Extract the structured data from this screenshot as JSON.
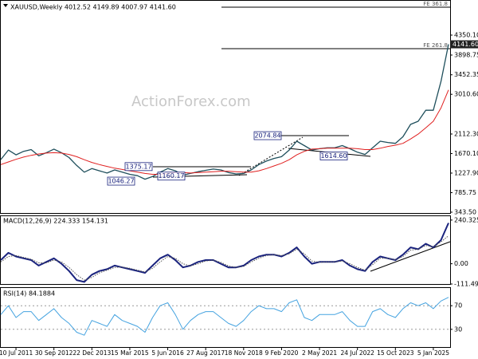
{
  "chart_data": [
    {
      "type": "line",
      "title": "XAUUSD,Weekly  4012.52 4149.89 4007.97 4141.60",
      "watermark": "ActionForex.com",
      "ylim": [
        307,
        5108
      ],
      "yticks": [
        {
          "value": 4350.1,
          "label": "4350.10"
        },
        {
          "value": 3898.75,
          "label": "3898.75"
        },
        {
          "value": 3452.35,
          "label": "3452.35"
        },
        {
          "value": 3010.6,
          "label": "3010.60"
        },
        {
          "value": 2112.3,
          "label": "2112.30"
        },
        {
          "value": 1670.1,
          "label": "1670.10"
        },
        {
          "value": 1227.9,
          "label": "1227.90"
        },
        {
          "value": 785.75,
          "label": "785.75"
        },
        {
          "value": 343.5,
          "label": "343.50"
        }
      ],
      "last_price": {
        "value": 4141.6,
        "label": "4141.60"
      },
      "levels": [
        {
          "value": 4982,
          "label": "FE 361.8"
        },
        {
          "value": 4043,
          "label": "FE 261.8"
        }
      ],
      "annotations": [
        {
          "value": 2074.84,
          "label": "2074.84"
        },
        {
          "value": 1375.17,
          "label": "1375.17"
        },
        {
          "value": 1046.27,
          "label": "1046.27"
        },
        {
          "value": 1160.17,
          "label": "1160.17"
        },
        {
          "value": 1614.6,
          "label": "1614.60"
        }
      ],
      "series": [
        {
          "color": "#1f4f5c",
          "width": 1.3,
          "values": [
            1534,
            1750,
            1640,
            1720,
            1760,
            1620,
            1690,
            1770,
            1690,
            1580,
            1400,
            1250,
            1330,
            1280,
            1230,
            1300,
            1250,
            1200,
            1170,
            1090,
            1150,
            1250,
            1330,
            1280,
            1180,
            1220,
            1260,
            1290,
            1320,
            1300,
            1240,
            1210,
            1220,
            1300,
            1420,
            1500,
            1560,
            1600,
            1750,
            1950,
            1850,
            1750,
            1780,
            1800,
            1800,
            1850,
            1780,
            1700,
            1650,
            1800,
            1950,
            1920,
            1900,
            2050,
            2330,
            2400,
            2650,
            2650,
            3300,
            4141.6
          ]
        },
        {
          "color": "#e02020",
          "width": 1,
          "values": [
            1420,
            1480,
            1540,
            1590,
            1630,
            1660,
            1680,
            1690,
            1680,
            1650,
            1600,
            1530,
            1470,
            1420,
            1380,
            1340,
            1310,
            1280,
            1250,
            1220,
            1200,
            1200,
            1220,
            1240,
            1240,
            1230,
            1240,
            1250,
            1260,
            1270,
            1270,
            1260,
            1250,
            1250,
            1280,
            1330,
            1390,
            1450,
            1530,
            1640,
            1720,
            1770,
            1780,
            1790,
            1790,
            1790,
            1790,
            1780,
            1760,
            1760,
            1790,
            1830,
            1860,
            1900,
            2000,
            2110,
            2250,
            2400,
            2700,
            3110
          ]
        }
      ]
    },
    {
      "type": "line",
      "title": "MACD(12,26,9) 224.333 154.131",
      "ylim": [
        -111.496,
        266
      ],
      "yticks": [
        240.325,
        {
          "value": 0,
          "label": "0.00"
        },
        -111.496
      ],
      "series": [
        {
          "color": "#1a237e",
          "width": 2,
          "values": [
            20,
            60,
            40,
            30,
            20,
            -10,
            10,
            30,
            0,
            -40,
            -90,
            -100,
            -60,
            -40,
            -30,
            -10,
            -20,
            -30,
            -40,
            -50,
            -10,
            30,
            50,
            20,
            -20,
            -10,
            10,
            20,
            20,
            0,
            -20,
            -20,
            -10,
            20,
            40,
            50,
            50,
            40,
            60,
            90,
            40,
            0,
            10,
            10,
            10,
            20,
            -10,
            -30,
            -40,
            10,
            40,
            30,
            20,
            50,
            90,
            80,
            110,
            90,
            130,
            224.333
          ]
        },
        {
          "color": "#555555",
          "width": 1,
          "dotted": true,
          "values": [
            10,
            40,
            45,
            35,
            25,
            5,
            5,
            20,
            10,
            -20,
            -60,
            -90,
            -75,
            -50,
            -35,
            -20,
            -18,
            -25,
            -35,
            -45,
            -25,
            10,
            40,
            30,
            0,
            -12,
            0,
            15,
            20,
            8,
            -12,
            -20,
            -15,
            10,
            30,
            45,
            50,
            45,
            55,
            80,
            55,
            15,
            8,
            10,
            10,
            15,
            0,
            -20,
            -35,
            -5,
            30,
            30,
            22,
            40,
            75,
            80,
            100,
            95,
            120,
            154.131
          ]
        }
      ]
    },
    {
      "type": "line",
      "title": "RSI(14) 84.1884",
      "ylim": [
        0,
        100
      ],
      "yticks": [
        70,
        30
      ],
      "grid": true,
      "categories": [
        null,
        null,
        "10 Jul 2011",
        null,
        null,
        null,
        null,
        "30 Sep 2012",
        null,
        null,
        null,
        null,
        "22 Dec 2013",
        null,
        null,
        null,
        null,
        "15 Mar 2015",
        null,
        null,
        null,
        null,
        "5 Jun 2016",
        null,
        null,
        null,
        null,
        "27 Aug 2017",
        null,
        null,
        null,
        null,
        "18 Nov 2018",
        null,
        null,
        null,
        null,
        "9 Feb 2020",
        null,
        null,
        null,
        null,
        "2 May 2021",
        null,
        null,
        null,
        null,
        "24 Jul 2022",
        null,
        null,
        null,
        null,
        "15 Oct 2023",
        null,
        null,
        null,
        null,
        "5 Jan 2025",
        null,
        null
      ],
      "series": [
        {
          "color": "#45a3e0",
          "width": 1,
          "values": [
            55,
            70,
            50,
            60,
            60,
            45,
            55,
            65,
            50,
            40,
            25,
            20,
            45,
            40,
            35,
            55,
            45,
            40,
            35,
            25,
            50,
            70,
            75,
            55,
            30,
            45,
            55,
            60,
            60,
            50,
            40,
            35,
            45,
            60,
            70,
            65,
            65,
            60,
            75,
            80,
            50,
            45,
            55,
            55,
            55,
            60,
            45,
            35,
            35,
            60,
            65,
            55,
            50,
            65,
            75,
            70,
            75,
            65,
            78,
            84.1884
          ]
        }
      ]
    }
  ]
}
